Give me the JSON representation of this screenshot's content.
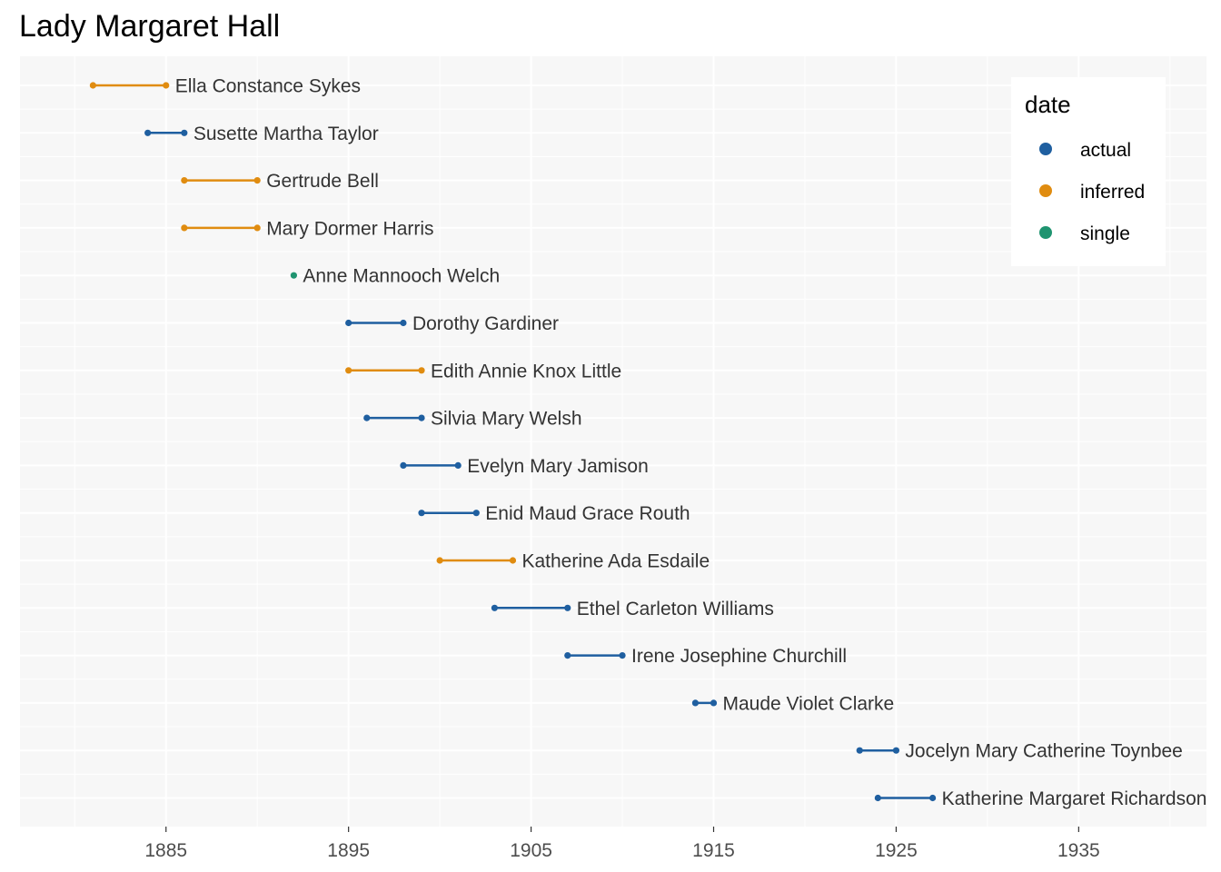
{
  "chart_data": {
    "type": "dumbbell",
    "title": "Lady Margaret Hall",
    "xlabel": "",
    "ylabel": "",
    "xlim": [
      1877,
      1942
    ],
    "x_ticks": [
      1885,
      1895,
      1905,
      1915,
      1925,
      1935
    ],
    "grid": true,
    "legend": {
      "title": "date",
      "position": "top-right",
      "entries": [
        {
          "key": "actual",
          "label": "actual",
          "color": "#1f5fa0"
        },
        {
          "key": "inferred",
          "label": "inferred",
          "color": "#e08c10"
        },
        {
          "key": "single",
          "label": "single",
          "color": "#1f9470"
        }
      ]
    },
    "rows": [
      {
        "name": "Ella Constance Sykes",
        "start": 1881,
        "end": 1885,
        "date": "inferred"
      },
      {
        "name": "Susette Martha Taylor",
        "start": 1884,
        "end": 1886,
        "date": "actual"
      },
      {
        "name": "Gertrude Bell",
        "start": 1886,
        "end": 1890,
        "date": "inferred"
      },
      {
        "name": "Mary Dormer Harris",
        "start": 1886,
        "end": 1890,
        "date": "inferred"
      },
      {
        "name": "Anne Mannooch Welch",
        "start": 1892,
        "end": 1892,
        "date": "single"
      },
      {
        "name": "Dorothy Gardiner",
        "start": 1895,
        "end": 1898,
        "date": "actual"
      },
      {
        "name": "Edith Annie Knox Little",
        "start": 1895,
        "end": 1899,
        "date": "inferred"
      },
      {
        "name": "Silvia Mary Welsh",
        "start": 1896,
        "end": 1899,
        "date": "actual"
      },
      {
        "name": "Evelyn Mary Jamison",
        "start": 1898,
        "end": 1901,
        "date": "actual"
      },
      {
        "name": "Enid Maud Grace Routh",
        "start": 1899,
        "end": 1902,
        "date": "actual"
      },
      {
        "name": "Katherine Ada Esdaile",
        "start": 1900,
        "end": 1904,
        "date": "inferred"
      },
      {
        "name": "Ethel Carleton Williams",
        "start": 1903,
        "end": 1907,
        "date": "actual"
      },
      {
        "name": "Irene Josephine Churchill",
        "start": 1907,
        "end": 1910,
        "date": "actual"
      },
      {
        "name": "Maude Violet Clarke",
        "start": 1914,
        "end": 1915,
        "date": "actual"
      },
      {
        "name": "Jocelyn Mary Catherine Toynbee",
        "start": 1923,
        "end": 1925,
        "date": "actual"
      },
      {
        "name": "Katherine Margaret Richardson",
        "start": 1924,
        "end": 1927,
        "date": "actual"
      }
    ]
  }
}
